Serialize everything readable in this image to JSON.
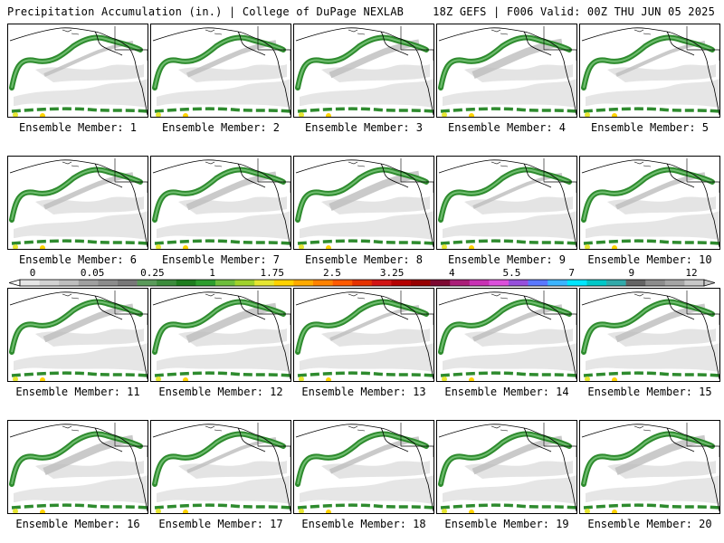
{
  "header": {
    "title_left": "Precipitation Accumulation (in.) | College of DuPage NEXLAB",
    "title_right": "18Z GEFS | F006 Valid: 00Z THU JUN 05 2025"
  },
  "members": [
    {
      "label": "Ensemble Member: 1"
    },
    {
      "label": "Ensemble Member: 2"
    },
    {
      "label": "Ensemble Member: 3"
    },
    {
      "label": "Ensemble Member: 4"
    },
    {
      "label": "Ensemble Member: 5"
    },
    {
      "label": "Ensemble Member: 6"
    },
    {
      "label": "Ensemble Member: 7"
    },
    {
      "label": "Ensemble Member: 8"
    },
    {
      "label": "Ensemble Member: 9"
    },
    {
      "label": "Ensemble Member: 10"
    },
    {
      "label": "Ensemble Member: 11"
    },
    {
      "label": "Ensemble Member: 12"
    },
    {
      "label": "Ensemble Member: 13"
    },
    {
      "label": "Ensemble Member: 14"
    },
    {
      "label": "Ensemble Member: 15"
    },
    {
      "label": "Ensemble Member: 16"
    },
    {
      "label": "Ensemble Member: 17"
    },
    {
      "label": "Ensemble Member: 18"
    },
    {
      "label": "Ensemble Member: 19"
    },
    {
      "label": "Ensemble Member: 20"
    }
  ],
  "colorbar": {
    "tick_labels": [
      "0",
      "0.05",
      "0.25",
      "1",
      "1.75",
      "2.5",
      "3.25",
      "4",
      "5.5",
      "7",
      "9",
      "12"
    ],
    "colors": [
      "#e6e6e6",
      "#d2d2d2",
      "#bebebe",
      "#a0a0a0",
      "#8c8c8c",
      "#787878",
      "#5a9a5a",
      "#3c8c3c",
      "#1e7d1e",
      "#2e9e2e",
      "#6ebe3c",
      "#a0d22c",
      "#e6e632",
      "#ffd200",
      "#ffaa00",
      "#ff8200",
      "#ff5a00",
      "#e63200",
      "#d21414",
      "#b40000",
      "#960000",
      "#7d0a32",
      "#aa1e78",
      "#c832b4",
      "#dc50dc",
      "#9650dc",
      "#5a78ff",
      "#3cb4ff",
      "#00e6ff",
      "#00c8c8",
      "#32aaaa",
      "#646464",
      "#8c8c8c",
      "#a5a5a5",
      "#c8c8c8"
    ]
  }
}
